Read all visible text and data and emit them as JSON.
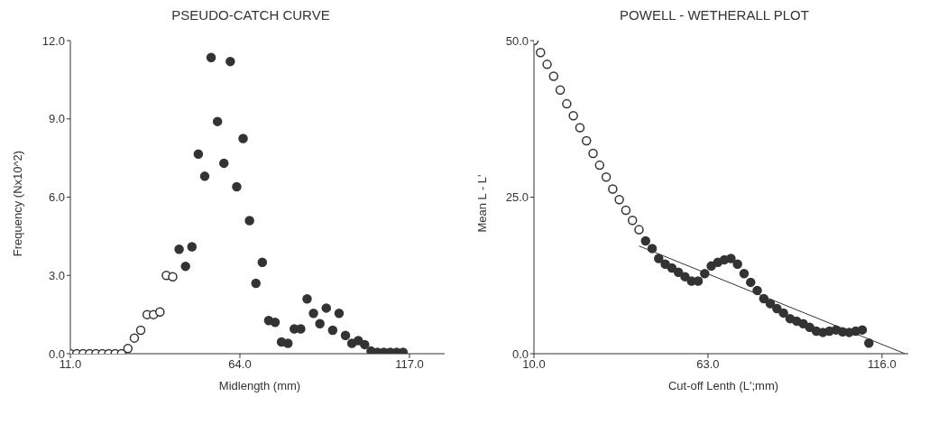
{
  "chart_data": [
    {
      "type": "scatter",
      "title": "PSEUDO-CATCH CURVE",
      "xlabel": "Midlength (mm)",
      "ylabel": "Frequency (Nx10^2)",
      "xlim": [
        11,
        128
      ],
      "xticks": [
        {
          "value": 11,
          "label": "11.0"
        },
        {
          "value": 64,
          "label": "64.0"
        },
        {
          "value": 117,
          "label": "117.0"
        }
      ],
      "ylim": [
        0,
        12
      ],
      "yticks": [
        {
          "value": 0,
          "label": "0.0"
        },
        {
          "value": 3,
          "label": "3.0"
        },
        {
          "value": 6,
          "label": "6.0"
        },
        {
          "value": 9,
          "label": "9.0"
        },
        {
          "value": 12,
          "label": "12.0"
        }
      ],
      "marker": "circle",
      "series": [
        {
          "color": "#ffffff",
          "x": [
            11,
            13,
            15,
            17,
            19,
            21,
            23,
            25,
            27,
            29,
            31,
            33,
            35,
            37,
            39,
            41,
            43
          ],
          "values": [
            0,
            0,
            0,
            0,
            0,
            0,
            0,
            0,
            0,
            0.2,
            0.6,
            0.9,
            1.5,
            1.5,
            1.6,
            3.0,
            2.95
          ]
        },
        {
          "color": "#333333",
          "x": [
            45,
            47,
            49,
            51,
            53,
            55,
            57,
            59,
            61,
            63,
            65,
            67,
            69,
            71,
            73,
            75,
            77,
            79,
            81,
            83,
            85,
            87,
            89,
            91,
            93,
            95,
            97,
            99,
            101,
            103,
            105,
            107,
            109,
            111,
            113,
            115
          ],
          "values": [
            4.0,
            3.35,
            4.1,
            7.65,
            6.8,
            11.35,
            8.9,
            7.3,
            11.2,
            6.4,
            8.25,
            5.1,
            2.7,
            3.5,
            1.27,
            1.2,
            0.45,
            0.4,
            0.95,
            0.95,
            2.1,
            1.55,
            1.15,
            1.75,
            0.9,
            1.55,
            0.7,
            0.4,
            0.5,
            0.35,
            0.1,
            0.05,
            0.05,
            0.05,
            0.05,
            0.05
          ]
        }
      ]
    },
    {
      "type": "scatter",
      "title": "POWELL - WETHERALL PLOT",
      "xlabel": "Cut-off Lenth (L';mm)",
      "ylabel": "Mean L - L'",
      "xlim": [
        10,
        124
      ],
      "xticks": [
        {
          "value": 10,
          "label": "10.0"
        },
        {
          "value": 63,
          "label": "63.0"
        },
        {
          "value": 116,
          "label": "116.0"
        }
      ],
      "ylim": [
        0,
        50
      ],
      "yticks": [
        {
          "value": 0,
          "label": "0.0"
        },
        {
          "value": 25,
          "label": "25.0"
        },
        {
          "value": 50,
          "label": "50.0"
        }
      ],
      "marker": "circle",
      "series": [
        {
          "color": "#ffffff",
          "x": [
            10,
            12,
            14,
            16,
            18,
            20,
            22,
            24,
            26,
            28,
            30,
            32,
            34,
            36,
            38,
            40,
            42
          ],
          "values": [
            50.0,
            48.1,
            46.2,
            44.3,
            42.1,
            39.9,
            38.0,
            36.1,
            34.0,
            32.0,
            30.1,
            28.2,
            26.3,
            24.6,
            22.9,
            21.3,
            19.8
          ]
        },
        {
          "color": "#333333",
          "x": [
            44,
            46,
            48,
            50,
            52,
            54,
            56,
            58,
            60,
            62,
            64,
            66,
            68,
            70,
            72,
            74,
            76,
            78,
            80,
            82,
            84,
            86,
            88,
            90,
            92,
            94,
            96,
            98,
            100,
            102,
            104,
            106,
            108,
            110,
            112
          ],
          "values": [
            18.0,
            16.8,
            15.2,
            14.3,
            13.7,
            13.0,
            12.3,
            11.6,
            11.6,
            12.8,
            14.0,
            14.6,
            15.0,
            15.2,
            14.3,
            12.8,
            11.4,
            10.1,
            8.8,
            8.0,
            7.2,
            6.5,
            5.6,
            5.2,
            4.8,
            4.2,
            3.6,
            3.4,
            3.6,
            3.8,
            3.5,
            3.4,
            3.6,
            3.8,
            1.7
          ]
        },
        {
          "type": "line",
          "marker": "none",
          "color": "#333333",
          "x": [
            42,
            123
          ],
          "values": [
            17.2,
            0
          ]
        }
      ]
    }
  ]
}
